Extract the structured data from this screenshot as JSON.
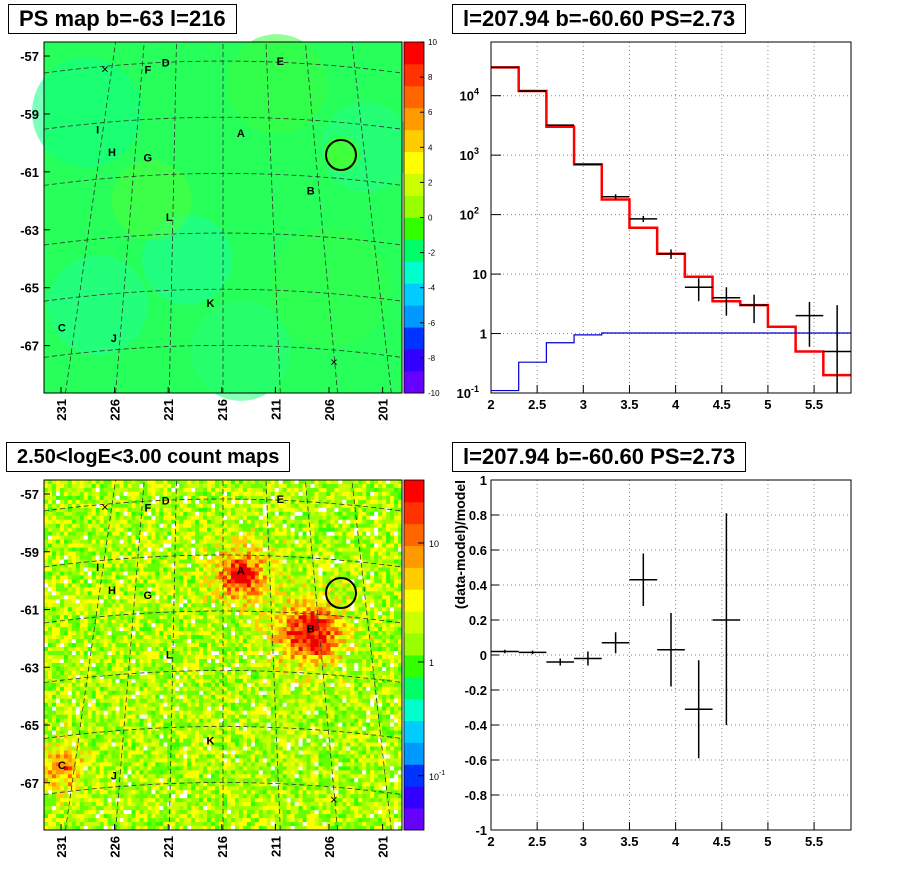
{
  "titles": {
    "map_top": "PS map b=-63 l=216",
    "spec_top": "l=207.94 b=-60.60 PS=2.73",
    "map_bottom": "2.50<logE<3.00 count maps",
    "spec_bottom": "l=207.94 b=-60.60 PS=2.73"
  },
  "chart_data": [
    {
      "type": "heatmap",
      "title": "PS map b=-63 l=216",
      "xlabel": "",
      "ylabel": "",
      "x_ticks": [
        "231",
        "226",
        "221",
        "216",
        "211",
        "206",
        "201"
      ],
      "y_ticks": [
        "-57",
        "-59",
        "-61",
        "-63",
        "-65",
        "-67"
      ],
      "colorbar": {
        "range": [
          -10,
          10
        ],
        "ticks": [
          "10",
          "8",
          "6",
          "4",
          "2",
          "0",
          "-2",
          "-4",
          "-6",
          "-8",
          "-10"
        ]
      },
      "sources": [
        "A",
        "B",
        "C",
        "D",
        "E",
        "F",
        "G",
        "H",
        "I",
        "J",
        "K",
        "L"
      ],
      "circle_marker": "l=207.94 b=-60.60"
    },
    {
      "type": "line",
      "title": "l=207.94 b=-60.60 PS=2.73",
      "xlabel": "",
      "ylabel": "",
      "xlim": [
        2,
        5.9
      ],
      "ylog": true,
      "ylim": [
        0.1,
        80000
      ],
      "x_ticks": [
        "2",
        "2.5",
        "3",
        "3.5",
        "4",
        "4.5",
        "5",
        "5.5"
      ],
      "y_ticks": [
        "10^-1",
        "1",
        "10",
        "10^2",
        "10^3",
        "10^4"
      ],
      "bin_edges": [
        2.0,
        2.3,
        2.6,
        2.9,
        3.2,
        3.5,
        3.8,
        4.1,
        4.4,
        4.7,
        5.0,
        5.3,
        5.6,
        5.9
      ],
      "series": [
        {
          "values": [
            30000,
            12000,
            3000,
            700,
            180,
            60,
            22,
            9,
            3.5,
            3,
            1.3,
            0.5,
            0.2
          ],
          "color": "#ff0000"
        },
        {
          "values": [
            0.11,
            0.33,
            0.7,
            0.95,
            1.02,
            1.02,
            1.02,
            1.02,
            1.02,
            1.02,
            1.02,
            1.02,
            1.02
          ],
          "color": "#0000cc"
        },
        {
          "values": [
            30000,
            12000,
            3200,
            700,
            200,
            85,
            22,
            6,
            4,
            3,
            null,
            2,
            0.5
          ],
          "err_lo": [
            0,
            0,
            0,
            0,
            20,
            10,
            4,
            2.5,
            2,
            1.5,
            null,
            1.4,
            0.4
          ],
          "err_hi": [
            0,
            0,
            0,
            0,
            20,
            10,
            4,
            2.5,
            2,
            1.5,
            null,
            1.4,
            2.5
          ],
          "color": "#000000"
        }
      ]
    },
    {
      "type": "heatmap",
      "title": "2.50<logE<3.00 count maps",
      "xlabel": "",
      "ylabel": "",
      "x_ticks": [
        "231",
        "226",
        "221",
        "216",
        "211",
        "206",
        "201"
      ],
      "y_ticks": [
        "-57",
        "-59",
        "-61",
        "-63",
        "-65",
        "-67"
      ],
      "colorbar": {
        "log": true,
        "ticks": [
          "10",
          "1",
          "10^-1"
        ]
      },
      "sources": [
        "A",
        "B",
        "C",
        "D",
        "E",
        "F",
        "G",
        "H",
        "I",
        "J",
        "K",
        "L"
      ],
      "circle_marker": "l=207.94 b=-60.60"
    },
    {
      "type": "scatter",
      "title": "l=207.94 b=-60.60 PS=2.73",
      "xlabel": "",
      "ylabel": "(data-model)/model",
      "xlim": [
        2,
        5.9
      ],
      "ylim": [
        -1,
        1
      ],
      "x_ticks": [
        "2",
        "2.5",
        "3",
        "3.5",
        "4",
        "4.5",
        "5",
        "5.5"
      ],
      "y_ticks": [
        "1",
        "0.8",
        "0.6",
        "0.4",
        "0.2",
        "0",
        "-0.2",
        "-0.4",
        "-0.6",
        "-0.8",
        "-1"
      ],
      "points": [
        {
          "x": 2.15,
          "y": 0.02,
          "xerr": 0.15,
          "yerr": 0.01
        },
        {
          "x": 2.45,
          "y": 0.015,
          "xerr": 0.15,
          "yerr": 0.01
        },
        {
          "x": 2.75,
          "y": -0.04,
          "xerr": 0.15,
          "yerr": 0.02
        },
        {
          "x": 3.05,
          "y": -0.02,
          "xerr": 0.15,
          "yerr": 0.04
        },
        {
          "x": 3.35,
          "y": 0.07,
          "xerr": 0.15,
          "yerr": 0.06
        },
        {
          "x": 3.65,
          "y": 0.43,
          "xerr": 0.15,
          "yerr": 0.15
        },
        {
          "x": 3.95,
          "y": 0.03,
          "xerr": 0.15,
          "yerr": 0.21
        },
        {
          "x": 4.25,
          "y": -0.31,
          "xerr": 0.15,
          "yerr": 0.28
        },
        {
          "x": 4.55,
          "y": 0.2,
          "xerr": 0.15,
          "yerr_lo": 0.6,
          "yerr_hi": 0.61
        }
      ]
    }
  ]
}
